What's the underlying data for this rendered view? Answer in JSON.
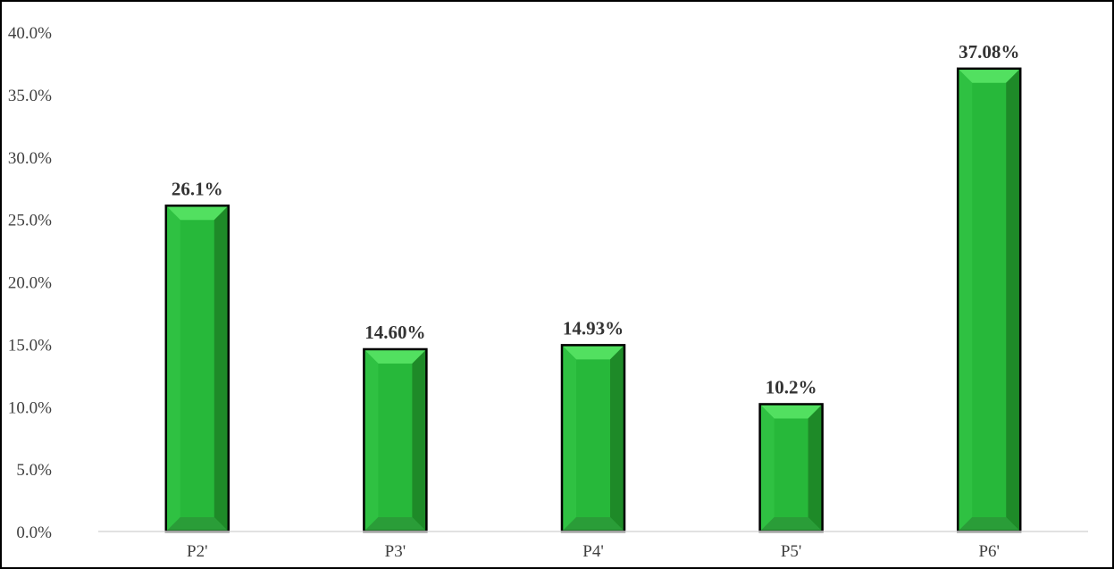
{
  "chart_data": {
    "type": "bar",
    "categories": [
      "P2'",
      "P3'",
      "P4'",
      "P5'",
      "P6'"
    ],
    "values": [
      26.1,
      14.6,
      14.93,
      10.2,
      37.08
    ],
    "data_labels": [
      "26.1%",
      "14.60%",
      "14.93%",
      "10.2%",
      "37.08%"
    ],
    "title": "",
    "xlabel": "",
    "ylabel": "",
    "ylim": [
      0,
      40
    ],
    "yticks": [
      0,
      5,
      10,
      15,
      20,
      25,
      30,
      35,
      40
    ],
    "ytick_labels": [
      "0.0%",
      "5.0%",
      "10.0%",
      "15.0%",
      "20.0%",
      "25.0%",
      "30.0%",
      "35.0%",
      "40.0%"
    ],
    "grid": false,
    "legend": "none",
    "colors": {
      "bar_face": "#27b83a",
      "bar_top": "#52e060",
      "bar_right": "#1e8a28",
      "bar_left": "#2fc142",
      "bar_bottom": "#2a9d38",
      "outline": "#000000",
      "axis_line": "#d9d9d9"
    }
  }
}
